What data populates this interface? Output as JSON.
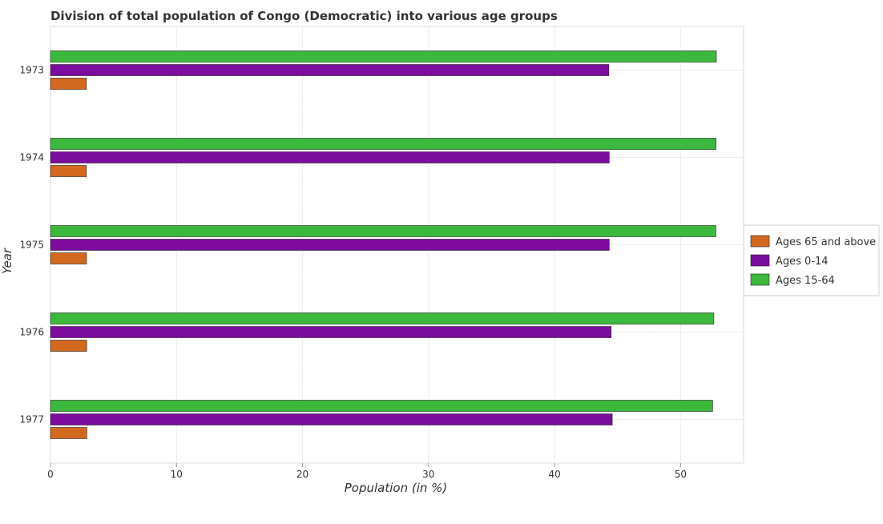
{
  "chart_data": {
    "type": "bar",
    "orientation": "horizontal",
    "title": "Division of total population of Congo (Democratic) into various age groups",
    "xlabel": "Population (in %)",
    "ylabel": "Year",
    "categories": [
      "1973",
      "1974",
      "1975",
      "1976",
      "1977"
    ],
    "series": [
      {
        "name": "Ages 65 and above",
        "color": "#d2691e",
        "values": [
          2.85,
          2.85,
          2.86,
          2.87,
          2.88
        ]
      },
      {
        "name": "Ages 0-14",
        "color": "#7b0c9e",
        "values": [
          44.31,
          44.34,
          44.34,
          44.49,
          44.58
        ]
      },
      {
        "name": "Ages 15-64",
        "color": "#3cb83c",
        "values": [
          52.84,
          52.81,
          52.8,
          52.64,
          52.54
        ]
      }
    ],
    "xlim": [
      0,
      55
    ],
    "xticks": [
      0,
      10,
      20,
      30,
      40,
      50
    ],
    "grid": true,
    "legend_position": "right"
  }
}
